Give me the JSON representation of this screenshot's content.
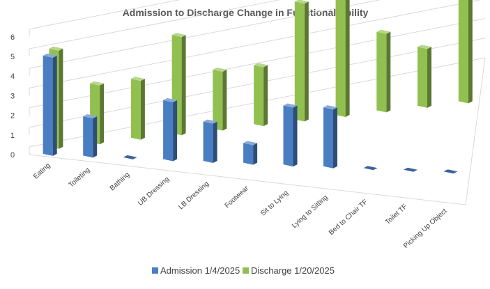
{
  "chart_data": {
    "type": "bar",
    "title": "Admission to Discharge Change in Functional Ability",
    "categories": [
      "Eating",
      "Toileting",
      "Bathing",
      "UB Dressing",
      "LB Dressing",
      "Footwear",
      "Sit to Lying",
      "Lying to Sitting",
      "Bed to Chair TF",
      "Toilet TF",
      "Picking Up Object"
    ],
    "series": [
      {
        "name": "Admission 1/4/2025",
        "values": [
          5,
          2,
          0,
          3,
          2,
          1,
          3,
          3,
          0,
          0,
          0
        ]
      },
      {
        "name": "Discharge 1/20/2025",
        "values": [
          5,
          3,
          3,
          5,
          3,
          3,
          6,
          6,
          4,
          3,
          6
        ]
      }
    ],
    "ylim": [
      0,
      6
    ],
    "yticks": [
      "0",
      "1",
      "2",
      "3",
      "4",
      "5",
      "6"
    ],
    "grid": true,
    "legend": "bottom",
    "colors": {
      "admission": "#4a7ec2",
      "discharge": "#92c050"
    }
  }
}
